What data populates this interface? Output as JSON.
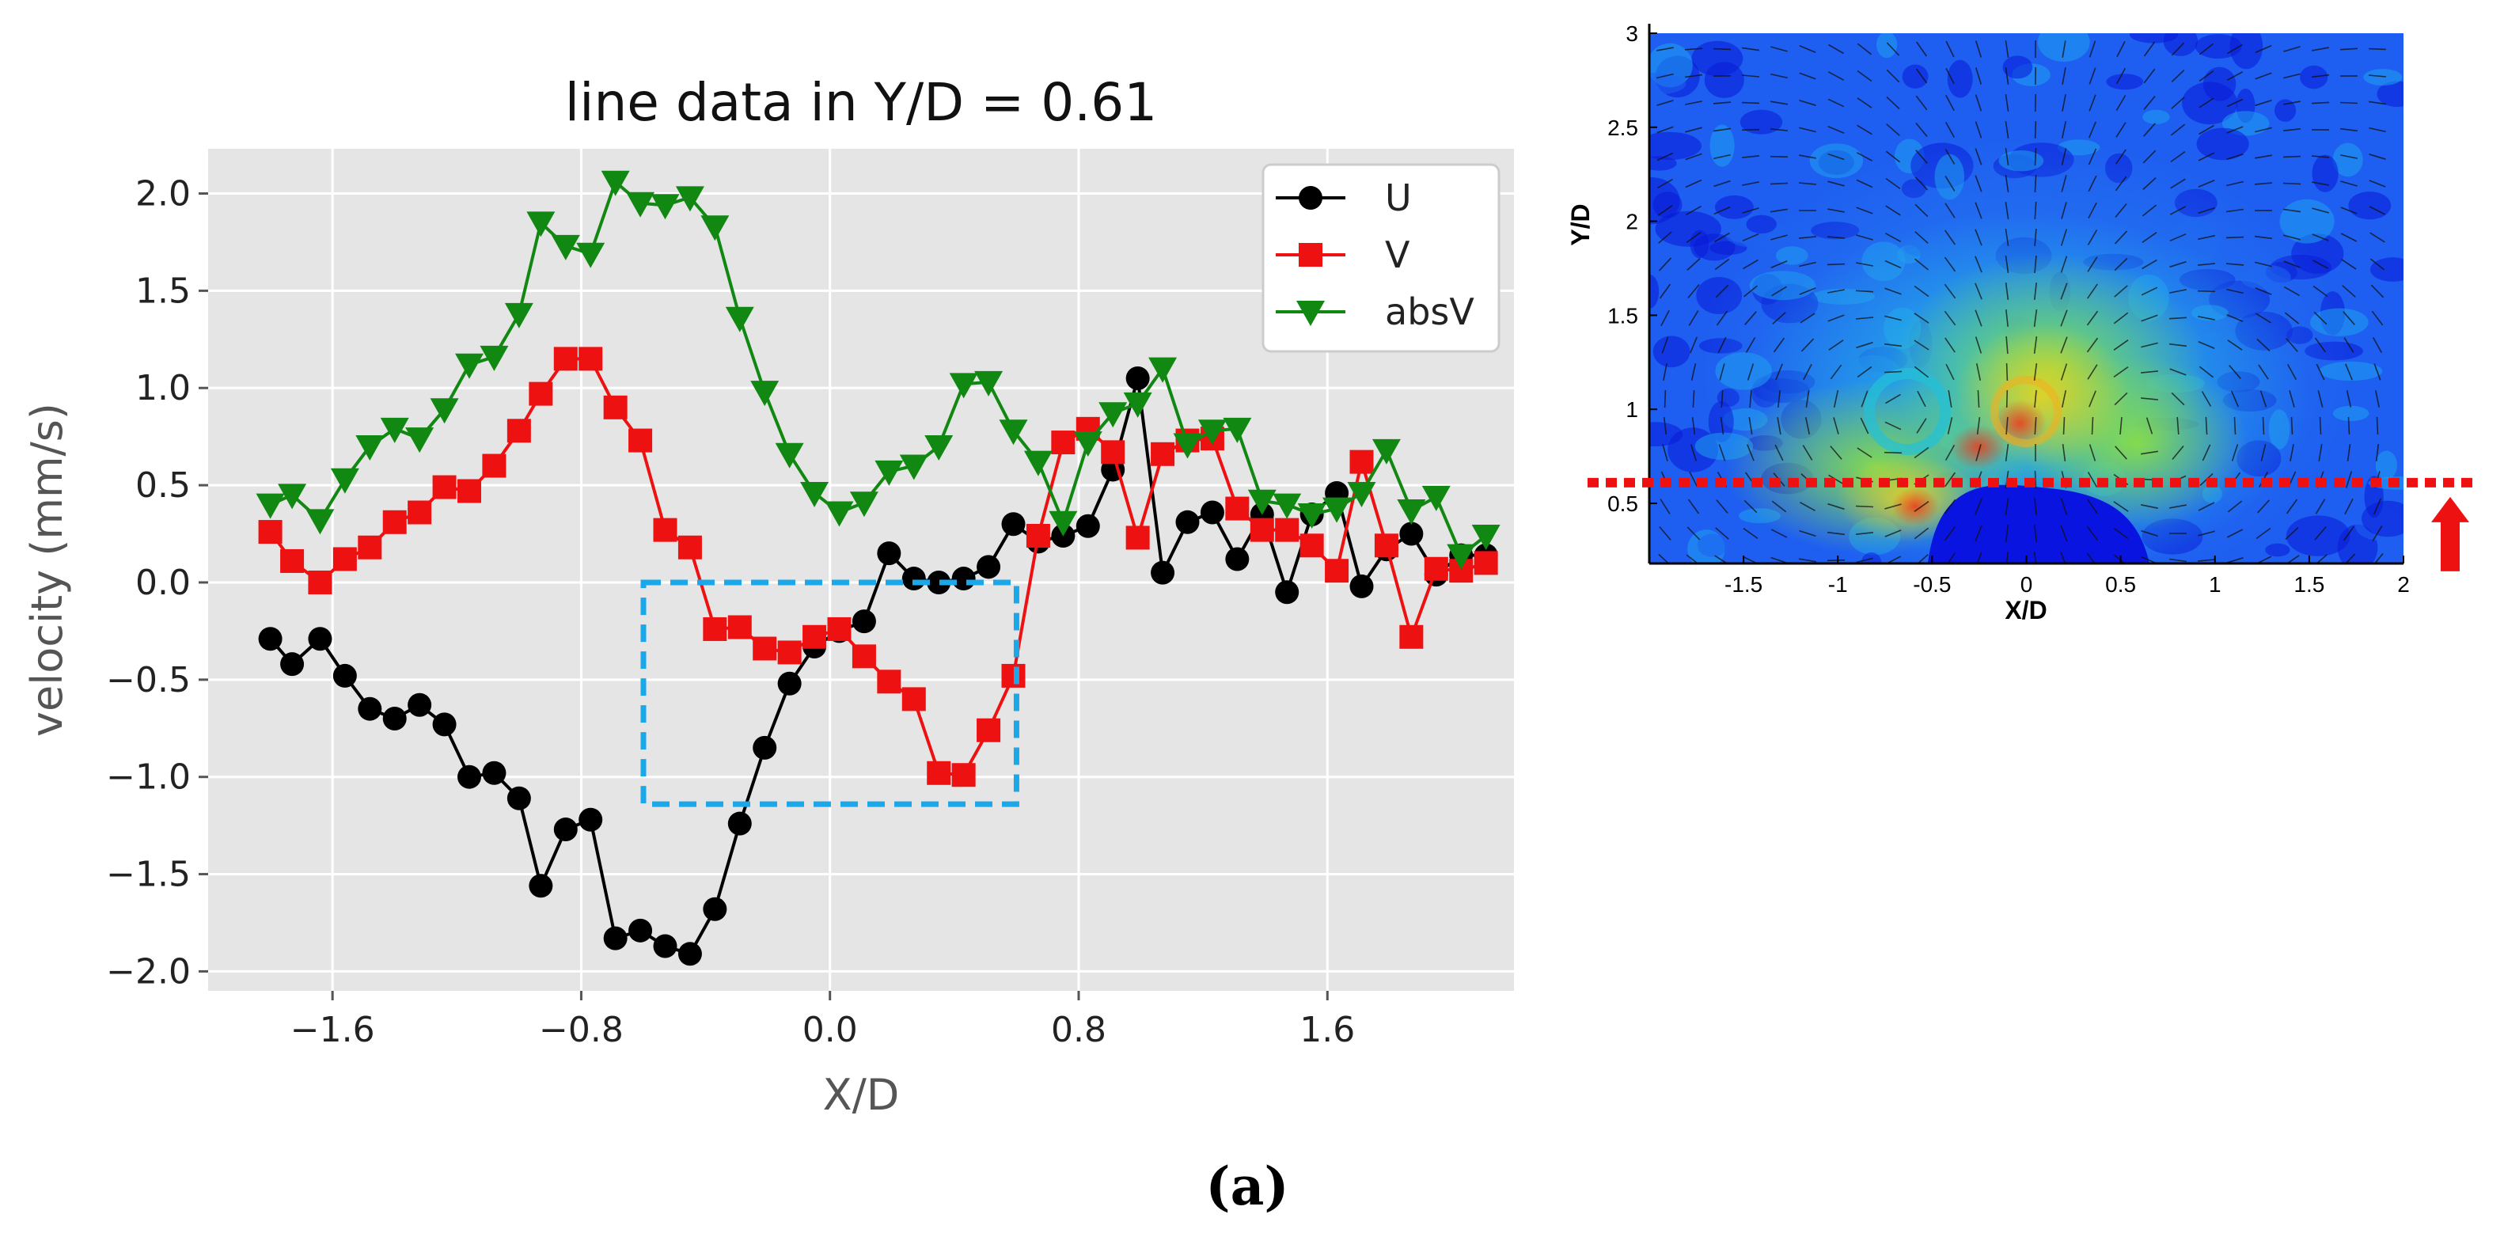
{
  "caption": "(a)",
  "chart_data": [
    {
      "type": "line",
      "title": "line data in Y/D = 0.61",
      "xlabel": "X/D",
      "ylabel": "velocity (mm/s)",
      "xlim": [
        -2.0,
        2.2
      ],
      "ylim": [
        -2.1,
        2.23
      ],
      "xticks": [
        -1.6,
        -0.8,
        0.0,
        0.8,
        1.6
      ],
      "xtick_labels": [
        "−1.6",
        "−0.8",
        "0.0",
        "0.8",
        "1.6"
      ],
      "yticks": [
        -2.0,
        -1.5,
        -1.0,
        -0.5,
        0.0,
        0.5,
        1.0,
        1.5,
        2.0
      ],
      "ytick_labels": [
        "−2.0",
        "−1.5",
        "−1.0",
        "−0.5",
        "0.0",
        "0.5",
        "1.0",
        "1.5",
        "2.0"
      ],
      "grid": true,
      "legend_position": "top-right",
      "x": [
        -1.8,
        -1.73,
        -1.64,
        -1.56,
        -1.48,
        -1.4,
        -1.32,
        -1.24,
        -1.16,
        -1.08,
        -1.0,
        -0.93,
        -0.85,
        -0.77,
        -0.69,
        -0.61,
        -0.53,
        -0.45,
        -0.37,
        -0.29,
        -0.21,
        -0.13,
        -0.05,
        0.03,
        0.11,
        0.19,
        0.27,
        0.35,
        0.43,
        0.51,
        0.59,
        0.67,
        0.75,
        0.83,
        0.91,
        0.99,
        1.07,
        1.15,
        1.23,
        1.31,
        1.39,
        1.47,
        1.55,
        1.63,
        1.71,
        1.79,
        1.87,
        1.95,
        2.03,
        2.11
      ],
      "series": [
        {
          "name": "U",
          "color": "#000000",
          "marker": "circle",
          "values": [
            -0.29,
            -0.42,
            -0.29,
            -0.48,
            -0.65,
            -0.7,
            -0.63,
            -0.73,
            -1.0,
            -0.98,
            -1.11,
            -1.56,
            -1.27,
            -1.22,
            -1.83,
            -1.79,
            -1.87,
            -1.91,
            -1.68,
            -1.24,
            -0.85,
            -0.52,
            -0.33,
            -0.25,
            -0.2,
            0.15,
            0.02,
            0.0,
            0.02,
            0.08,
            0.3,
            0.21,
            0.24,
            0.29,
            0.58,
            1.05,
            0.05,
            0.31,
            0.36,
            0.12,
            0.35,
            -0.05,
            0.35,
            0.46,
            -0.02,
            0.17,
            0.25,
            0.04,
            0.14,
            0.14
          ]
        },
        {
          "name": "V",
          "color": "#ee1111",
          "marker": "square",
          "values": [
            0.26,
            0.11,
            0.0,
            0.12,
            0.18,
            0.31,
            0.36,
            0.49,
            0.47,
            0.6,
            0.78,
            0.97,
            1.15,
            1.15,
            0.9,
            0.73,
            0.27,
            0.18,
            -0.24,
            -0.23,
            -0.34,
            -0.36,
            -0.28,
            -0.24,
            -0.38,
            -0.51,
            -0.6,
            -0.98,
            -0.99,
            -0.76,
            -0.48,
            0.24,
            0.72,
            0.79,
            0.67,
            0.23,
            0.66,
            0.73,
            0.74,
            0.38,
            0.27,
            0.27,
            0.19,
            0.06,
            0.62,
            0.19,
            -0.28,
            0.07,
            0.06,
            0.1
          ]
        },
        {
          "name": "absV",
          "color": "#118811",
          "marker": "triangle-down",
          "values": [
            0.4,
            0.45,
            0.32,
            0.53,
            0.7,
            0.79,
            0.74,
            0.89,
            1.12,
            1.16,
            1.38,
            1.85,
            1.73,
            1.69,
            2.06,
            1.95,
            1.94,
            1.98,
            1.83,
            1.36,
            0.98,
            0.66,
            0.46,
            0.36,
            0.41,
            0.57,
            0.6,
            0.7,
            1.02,
            1.03,
            0.78,
            0.62,
            0.31,
            0.72,
            0.87,
            0.92,
            1.1,
            0.71,
            0.78,
            0.79,
            0.42,
            0.4,
            0.35,
            0.38,
            0.46,
            0.68,
            0.37,
            0.44,
            0.14,
            0.24
          ]
        }
      ],
      "highlight_box": {
        "x_range": [
          -0.6,
          0.6
        ],
        "y_range": [
          -1.14,
          0.0
        ],
        "color": "#1aa8e8",
        "style": "dashed"
      }
    },
    {
      "type": "heatmap",
      "title": "",
      "xlabel": "X/D",
      "ylabel": "Y/D",
      "xlim": [
        -2.0,
        2.0
      ],
      "ylim": [
        0.18,
        3.0
      ],
      "xticks": [
        -1.5,
        -1,
        -0.5,
        0,
        0.5,
        1,
        1.5,
        2
      ],
      "xtick_labels": [
        "-1.5",
        "-1",
        "-0.5",
        "0",
        "0.5",
        "1",
        "1.5",
        "2"
      ],
      "yticks": [
        0.5,
        1,
        1.5,
        2,
        2.5,
        3
      ],
      "ytick_labels": [
        "0.5",
        "1",
        "1.5",
        "2",
        "2.5",
        "3"
      ],
      "marker_line_y": 0.61,
      "marker_color": "#ee1111",
      "colormap": [
        "#0a1ad8",
        "#1e62f0",
        "#1fa0f0",
        "#2ad0c8",
        "#58e070",
        "#c6ee30",
        "#f7c020",
        "#e84020"
      ]
    }
  ]
}
